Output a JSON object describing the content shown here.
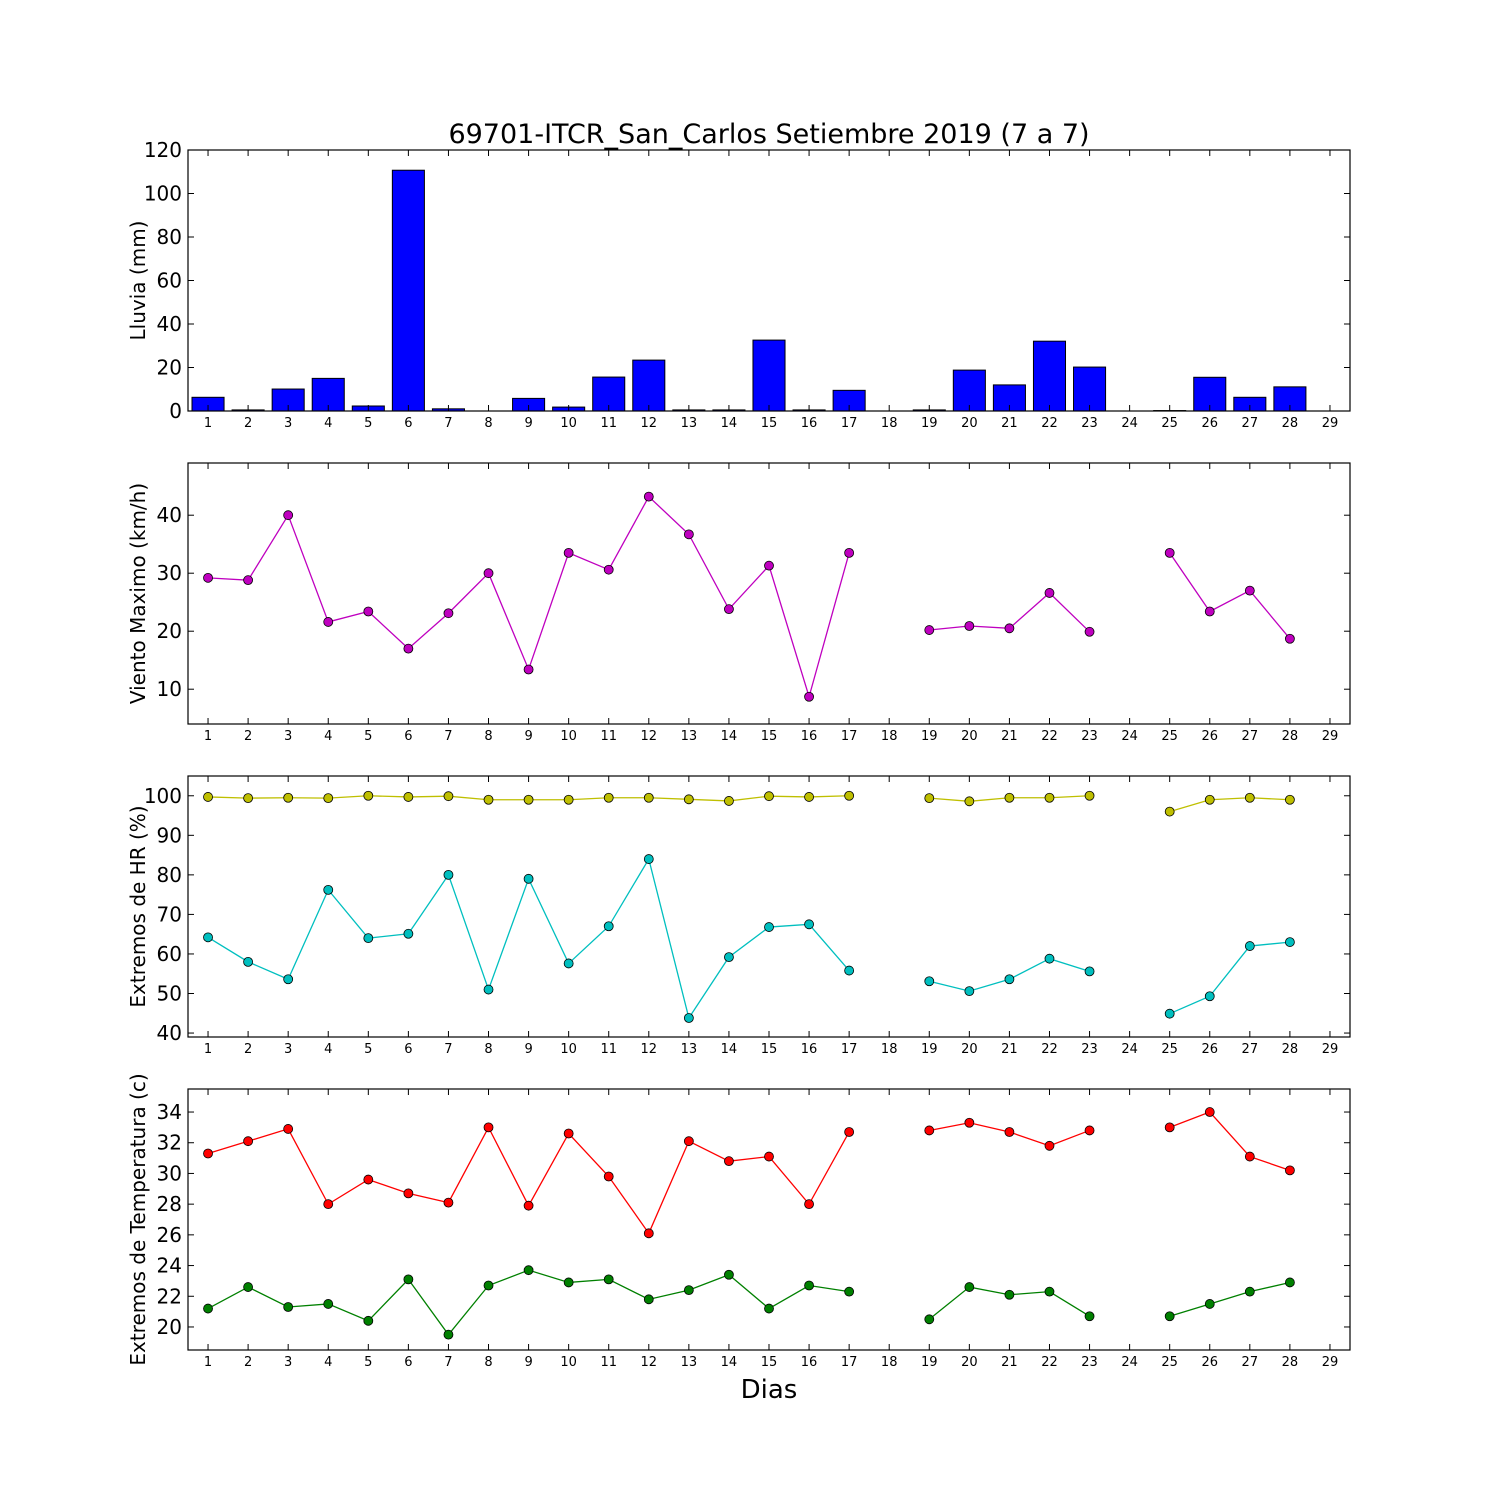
{
  "title": "69701-ITCR_San_Carlos Setiembre 2019  (7 a 7)",
  "xlabel": "Dias",
  "x_ticks": [
    1,
    2,
    3,
    4,
    5,
    6,
    7,
    8,
    9,
    10,
    11,
    12,
    13,
    14,
    15,
    16,
    17,
    18,
    19,
    20,
    21,
    22,
    23,
    24,
    25,
    26,
    27,
    28,
    29
  ],
  "colors": {
    "bar": "#0000ff",
    "wind": "#bf00bf",
    "hr_max": "#bfbf00",
    "hr_min": "#00bfbf",
    "temp_max": "#ff0000",
    "temp_min": "#008000"
  },
  "chart_data": [
    {
      "type": "bar",
      "ylabel": "Lluvia (mm)",
      "xlim": [
        0.5,
        29.5
      ],
      "ylim": [
        0,
        120
      ],
      "yticks": [
        0,
        20,
        40,
        60,
        80,
        100,
        120
      ],
      "series": [
        {
          "x": [
            1,
            2,
            3,
            4,
            5,
            6,
            7,
            8,
            9,
            10,
            11,
            12,
            13,
            14,
            15,
            16,
            17,
            18,
            19,
            20,
            21,
            22,
            23,
            24,
            25,
            26,
            27,
            28
          ],
          "values": [
            6.3,
            0.5,
            10.1,
            15.0,
            2.3,
            110.7,
            1.0,
            0,
            5.8,
            1.8,
            15.6,
            23.4,
            0.5,
            0.5,
            32.6,
            0.5,
            9.5,
            0,
            0.5,
            18.8,
            12.0,
            32.1,
            20.2,
            0,
            0.2,
            15.5,
            6.3,
            11.1
          ]
        }
      ]
    },
    {
      "type": "line",
      "ylabel": "Viento Maximo (km/h)",
      "xlim": [
        0.5,
        29.5
      ],
      "ylim": [
        4,
        49
      ],
      "yticks": [
        10,
        20,
        30,
        40
      ],
      "series": [
        {
          "x": [
            1,
            2,
            3,
            4,
            5,
            6,
            7,
            8,
            9,
            10,
            11,
            12,
            13,
            14,
            15,
            16,
            17,
            18,
            19,
            20,
            21,
            22,
            23,
            24,
            25,
            26,
            27,
            28
          ],
          "values": [
            29.2,
            28.8,
            40.0,
            21.6,
            23.4,
            17.0,
            23.1,
            30.0,
            13.4,
            33.5,
            30.6,
            43.2,
            36.7,
            23.8,
            31.3,
            8.7,
            33.5,
            null,
            20.2,
            20.9,
            20.5,
            26.6,
            19.9,
            null,
            33.5,
            23.4,
            27.0,
            18.7
          ]
        }
      ]
    },
    {
      "type": "line",
      "ylabel": "Extremos de HR (%)",
      "xlim": [
        0.5,
        29.5
      ],
      "ylim": [
        39,
        105
      ],
      "yticks": [
        40,
        50,
        60,
        70,
        80,
        90,
        100
      ],
      "series": [
        {
          "x": [
            1,
            2,
            3,
            4,
            5,
            6,
            7,
            8,
            9,
            10,
            11,
            12,
            13,
            14,
            15,
            16,
            17,
            18,
            19,
            20,
            21,
            22,
            23,
            24,
            25,
            26,
            27,
            28
          ],
          "values": [
            99.7,
            99.4,
            99.5,
            99.4,
            100.0,
            99.7,
            99.9,
            99.0,
            99.0,
            99.0,
            99.5,
            99.5,
            99.1,
            98.7,
            99.9,
            99.7,
            100.0,
            null,
            99.4,
            98.6,
            99.5,
            99.5,
            100.0,
            null,
            96.0,
            99.0,
            99.5,
            99.0
          ]
        },
        {
          "x": [
            1,
            2,
            3,
            4,
            5,
            6,
            7,
            8,
            9,
            10,
            11,
            12,
            13,
            14,
            15,
            16,
            17,
            18,
            19,
            20,
            21,
            22,
            23,
            24,
            25,
            26,
            27,
            28
          ],
          "values": [
            64.2,
            58.0,
            53.6,
            76.2,
            64.0,
            65.1,
            80.0,
            51.0,
            79.0,
            57.6,
            67.0,
            84.0,
            43.8,
            59.2,
            66.8,
            67.5,
            55.8,
            null,
            53.1,
            50.6,
            53.6,
            58.8,
            55.6,
            null,
            44.9,
            49.3,
            62.0,
            63.0
          ]
        }
      ]
    },
    {
      "type": "line",
      "ylabel": "Extremos de Temperatura (c)",
      "xlim": [
        0.5,
        29.5
      ],
      "ylim": [
        18.5,
        35.5
      ],
      "yticks": [
        20,
        22,
        24,
        26,
        28,
        30,
        32,
        34
      ],
      "series": [
        {
          "x": [
            1,
            2,
            3,
            4,
            5,
            6,
            7,
            8,
            9,
            10,
            11,
            12,
            13,
            14,
            15,
            16,
            17,
            18,
            19,
            20,
            21,
            22,
            23,
            24,
            25,
            26,
            27,
            28
          ],
          "values": [
            31.3,
            32.1,
            32.9,
            28.0,
            29.6,
            28.7,
            28.1,
            33.0,
            27.9,
            32.6,
            29.8,
            26.1,
            32.1,
            30.8,
            31.1,
            28.0,
            32.7,
            null,
            32.8,
            33.3,
            32.7,
            31.8,
            32.8,
            null,
            33.0,
            34.0,
            31.1,
            30.2
          ]
        },
        {
          "x": [
            1,
            2,
            3,
            4,
            5,
            6,
            7,
            8,
            9,
            10,
            11,
            12,
            13,
            14,
            15,
            16,
            17,
            18,
            19,
            20,
            21,
            22,
            23,
            24,
            25,
            26,
            27,
            28
          ],
          "values": [
            21.2,
            22.6,
            21.3,
            21.5,
            20.4,
            23.1,
            19.5,
            22.7,
            23.7,
            22.9,
            23.1,
            21.8,
            22.4,
            23.4,
            21.2,
            22.7,
            22.3,
            null,
            20.5,
            22.6,
            22.1,
            22.3,
            20.7,
            null,
            20.7,
            21.5,
            22.3,
            22.9
          ]
        }
      ]
    }
  ]
}
